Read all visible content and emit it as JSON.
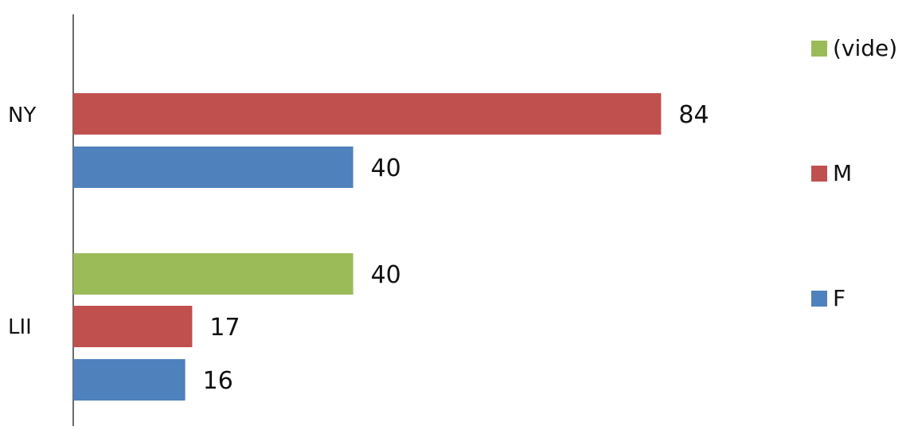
{
  "chart_data": {
    "type": "bar",
    "orientation": "horizontal",
    "categories": [
      "NY",
      "LII"
    ],
    "series": [
      {
        "name": "(vide)",
        "color": "#9BBB59",
        "values": [
          null,
          40
        ]
      },
      {
        "name": "M",
        "color": "#C0504D",
        "values": [
          84,
          17
        ]
      },
      {
        "name": "F",
        "color": "#4F81BD",
        "values": [
          40,
          16
        ]
      }
    ],
    "data_labels": true,
    "title": "",
    "xlabel": "",
    "ylabel": "",
    "xlim": [
      0,
      100
    ],
    "grid": false,
    "legend_position": "right"
  }
}
